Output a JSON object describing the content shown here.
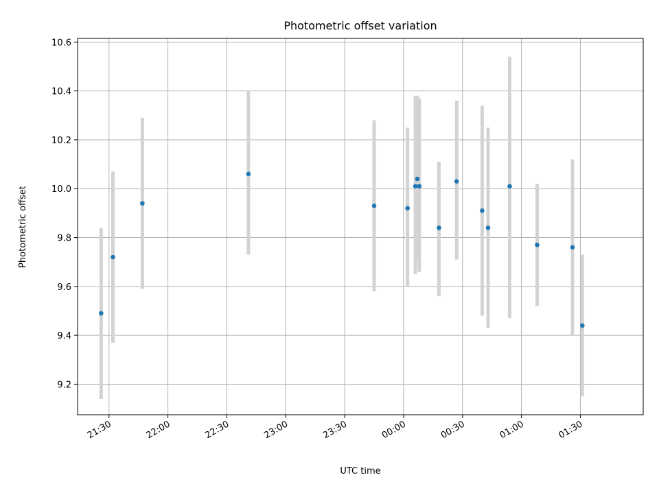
{
  "chart_data": {
    "type": "scatter",
    "title": "Photometric offset variation",
    "xlabel": "UTC time",
    "ylabel": "Photometric offset",
    "x_ticks": [
      "21:30",
      "22:00",
      "22:30",
      "23:00",
      "23:30",
      "00:00",
      "00:30",
      "01:00",
      "01:30"
    ],
    "y_ticks": [
      "9.2",
      "9.4",
      "9.6",
      "9.8",
      "10.0",
      "10.2",
      "10.4",
      "10.6"
    ],
    "ylim": [
      9.075,
      10.615
    ],
    "xlim": [
      "21:14",
      "02:02"
    ],
    "grid": true,
    "point_color": "#1f77b4",
    "errorbar_color": "#d3d3d3",
    "points": [
      {
        "time": "21:26",
        "y": 9.49,
        "low": 9.14,
        "high": 9.84
      },
      {
        "time": "21:32",
        "y": 9.72,
        "low": 9.37,
        "high": 10.07
      },
      {
        "time": "21:47",
        "y": 9.94,
        "low": 9.59,
        "high": 10.29
      },
      {
        "time": "22:41",
        "y": 10.06,
        "low": 9.73,
        "high": 10.4
      },
      {
        "time": "23:45",
        "y": 9.93,
        "low": 9.58,
        "high": 10.28
      },
      {
        "time": "00:02",
        "y": 9.92,
        "low": 9.6,
        "high": 10.25
      },
      {
        "time": "00:06",
        "y": 10.01,
        "low": 9.65,
        "high": 10.38
      },
      {
        "time": "00:07",
        "y": 10.04,
        "low": 9.7,
        "high": 10.38
      },
      {
        "time": "00:08",
        "y": 10.01,
        "low": 9.66,
        "high": 10.37
      },
      {
        "time": "00:18",
        "y": 9.84,
        "low": 9.56,
        "high": 10.11
      },
      {
        "time": "00:27",
        "y": 10.03,
        "low": 9.71,
        "high": 10.36
      },
      {
        "time": "00:40",
        "y": 9.91,
        "low": 9.48,
        "high": 10.34
      },
      {
        "time": "00:43",
        "y": 9.84,
        "low": 9.43,
        "high": 10.25
      },
      {
        "time": "00:54",
        "y": 10.01,
        "low": 9.47,
        "high": 10.54
      },
      {
        "time": "01:08",
        "y": 9.77,
        "low": 9.52,
        "high": 10.02
      },
      {
        "time": "01:26",
        "y": 9.76,
        "low": 9.4,
        "high": 10.12
      },
      {
        "time": "01:31",
        "y": 9.44,
        "low": 9.15,
        "high": 9.73
      }
    ]
  }
}
